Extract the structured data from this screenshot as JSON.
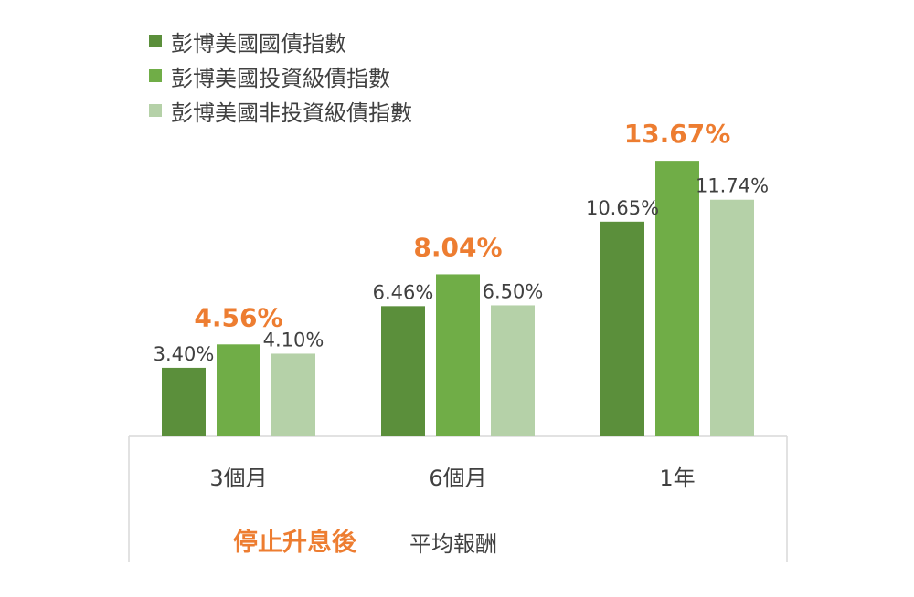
{
  "chart_data": {
    "type": "bar",
    "categories": [
      "3個月",
      "6個月",
      "1年"
    ],
    "series": [
      {
        "name": "彭博美國國債指數",
        "values": [
          3.4,
          6.46,
          10.65
        ],
        "labels": [
          "3.40%",
          "6.46%",
          "10.65%"
        ],
        "color": "#5b8f3b"
      },
      {
        "name": "彭博美國投資級債指數",
        "values": [
          4.56,
          8.04,
          13.67
        ],
        "labels": [
          "4.56%",
          "8.04%",
          "13.67%"
        ],
        "color": "#70ad47",
        "highlight": true
      },
      {
        "name": "彭博美國非投資級債指數",
        "values": [
          4.1,
          6.5,
          11.74
        ],
        "labels": [
          "4.10%",
          "6.50%",
          "11.74%"
        ],
        "color": "#b5d1a8"
      }
    ],
    "title": "",
    "xlabel": "",
    "ylabel": "",
    "ylim": [
      0,
      15
    ],
    "grid": false,
    "legend_position": "top-left",
    "highlight_color": "#ed7d31",
    "label_color": "#404040"
  },
  "footer": {
    "highlight_text": "停止升息後",
    "rest_text": "平均報酬"
  }
}
